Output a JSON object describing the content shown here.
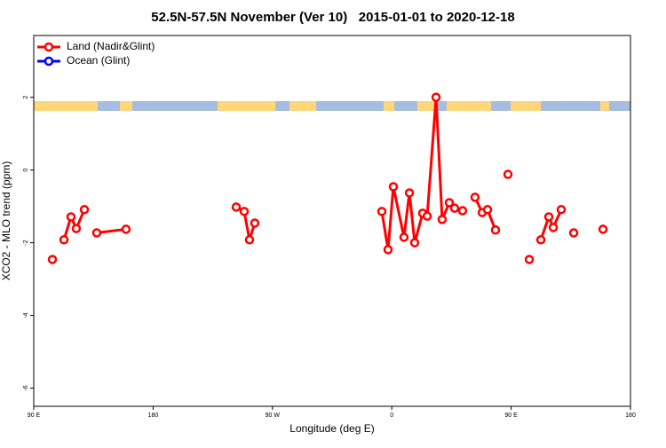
{
  "chart_data": {
    "type": "line",
    "title": "52.5N-57.5N November (Ver 10)   2015-01-01 to 2020-12-18",
    "xlabel": "Longitude (deg E)",
    "ylabel": "XCO2 - MLO trend (ppm)",
    "xlim": [
      90,
      540
    ],
    "ylim": [
      -6.5,
      3.7
    ],
    "xticks": [
      {
        "value": 90,
        "label": "90 E"
      },
      {
        "value": 180,
        "label": "180"
      },
      {
        "value": 270,
        "label": "90 W"
      },
      {
        "value": 360,
        "label": "0"
      },
      {
        "value": 450,
        "label": "90 E"
      },
      {
        "value": 540,
        "label": "180"
      }
    ],
    "yticks": [
      2,
      0,
      -2,
      -4,
      -6
    ],
    "legend": "top-left",
    "series": [
      {
        "name": "Land (Nadir&Glint)",
        "color": "#ff0000",
        "x": [
          104.1,
          null,
          112.8,
          118.1,
          122.1,
          128.2,
          null,
          137.5,
          159.6,
          null,
          242.7,
          248.7,
          252.7,
          256.7,
          null,
          352.5,
          357.2,
          361.2,
          369.2,
          373.3,
          377.3,
          383.3,
          386.7,
          393.4,
          398.0,
          403.4,
          407.4,
          413.4,
          null,
          422.8,
          428.2,
          432.2,
          438.2,
          null,
          447.6,
          null,
          463.7,
          null,
          472.4,
          478.4,
          481.8,
          487.8,
          null,
          497.2,
          null,
          519.3
        ],
        "values": [
          -2.46,
          null,
          -1.92,
          -1.29,
          -1.61,
          -1.09,
          null,
          -1.73,
          -1.63,
          null,
          -1.02,
          -1.14,
          -1.92,
          -1.46,
          null,
          -1.14,
          -2.19,
          -0.46,
          -1.85,
          -0.63,
          -2.0,
          -1.19,
          -1.27,
          2.0,
          -1.36,
          -0.9,
          -1.05,
          -1.12,
          null,
          -0.75,
          -1.17,
          -1.09,
          -1.65,
          null,
          -0.12,
          null,
          -2.46,
          null,
          -1.92,
          -1.29,
          -1.58,
          -1.09,
          null,
          -1.73,
          null,
          -1.63
        ]
      },
      {
        "name": "Ocean (Glint)",
        "color": "#0000ff",
        "x": [],
        "values": []
      }
    ]
  }
}
